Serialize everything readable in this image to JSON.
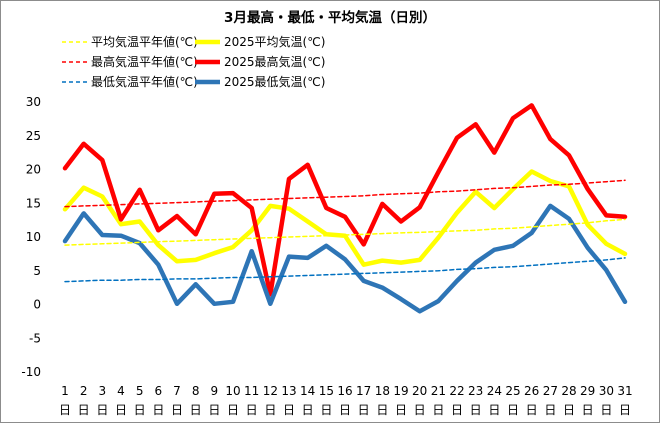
{
  "chart_data": {
    "type": "line",
    "title": "3月最高・最低・平均気温（日別）",
    "legend_placement": "top-left",
    "grid": false,
    "ylim": [
      -10,
      30
    ],
    "yticks": [
      30,
      25,
      20,
      15,
      10,
      5,
      0,
      -5,
      -10
    ],
    "x": [
      "1",
      "2",
      "3",
      "4",
      "5",
      "6",
      "7",
      "8",
      "9",
      "10",
      "11",
      "12",
      "13",
      "14",
      "15",
      "16",
      "17",
      "18",
      "19",
      "20",
      "21",
      "22",
      "23",
      "24",
      "25",
      "26",
      "27",
      "28",
      "29",
      "30",
      "31"
    ],
    "x_unit": "日",
    "series": [
      {
        "name": "平均気温平年値(℃)",
        "style": "dashed",
        "color": "#ffff00",
        "values": [
          8.8,
          8.9,
          9.0,
          9.1,
          9.2,
          9.3,
          9.4,
          9.5,
          9.6,
          9.7,
          9.8,
          9.9,
          10.0,
          10.1,
          10.2,
          10.3,
          10.4,
          10.5,
          10.6,
          10.7,
          10.8,
          10.9,
          11.0,
          11.2,
          11.3,
          11.5,
          11.7,
          11.9,
          12.1,
          12.4,
          12.6
        ]
      },
      {
        "name": "2025平均気温(℃)",
        "style": "solid",
        "color": "#ffff00",
        "values": [
          14.1,
          17.3,
          16.0,
          11.9,
          12.3,
          8.8,
          6.4,
          6.6,
          7.6,
          8.5,
          11.0,
          14.6,
          14.2,
          12.3,
          10.4,
          10.2,
          5.9,
          6.5,
          6.2,
          6.6,
          9.9,
          13.6,
          16.7,
          14.3,
          17.1,
          19.7,
          18.3,
          17.5,
          11.8,
          9.0,
          7.5
        ]
      },
      {
        "name": "最高気温平年値(℃)",
        "style": "dashed",
        "color": "#ff0000",
        "values": [
          14.5,
          14.6,
          14.7,
          14.8,
          14.9,
          15.0,
          15.1,
          15.2,
          15.3,
          15.4,
          15.5,
          15.6,
          15.7,
          15.8,
          15.9,
          16.0,
          16.1,
          16.3,
          16.4,
          16.5,
          16.7,
          16.8,
          17.0,
          17.2,
          17.3,
          17.5,
          17.7,
          17.8,
          18.0,
          18.2,
          18.4
        ]
      },
      {
        "name": "2025最高気温(℃)",
        "style": "solid",
        "color": "#ff0000",
        "values": [
          20.2,
          23.8,
          21.4,
          12.6,
          17.0,
          11.0,
          13.1,
          10.4,
          16.4,
          16.5,
          14.3,
          1.5,
          18.6,
          20.7,
          14.3,
          13.0,
          8.9,
          14.9,
          12.3,
          14.4,
          19.6,
          24.7,
          26.7,
          22.5,
          27.6,
          29.5,
          24.5,
          22.1,
          17.1,
          13.2,
          13.0
        ]
      },
      {
        "name": "最低気温平年値(℃)",
        "style": "dashed",
        "color": "#0070c0",
        "values": [
          3.4,
          3.5,
          3.6,
          3.6,
          3.7,
          3.7,
          3.8,
          3.8,
          3.9,
          4.0,
          4.0,
          4.1,
          4.2,
          4.3,
          4.4,
          4.5,
          4.6,
          4.7,
          4.8,
          4.9,
          5.0,
          5.2,
          5.3,
          5.5,
          5.6,
          5.8,
          6.0,
          6.2,
          6.4,
          6.6,
          6.9
        ]
      },
      {
        "name": "2025最低気温(℃)",
        "style": "solid",
        "color": "#2e75b6",
        "values": [
          9.4,
          13.5,
          10.3,
          10.2,
          9.1,
          5.9,
          0.1,
          3.0,
          0.1,
          0.4,
          7.9,
          0.1,
          7.1,
          6.9,
          8.7,
          6.7,
          3.5,
          2.5,
          0.8,
          -1.0,
          0.5,
          3.5,
          6.2,
          8.1,
          8.7,
          10.6,
          14.6,
          12.7,
          8.4,
          5.1,
          0.4
        ]
      }
    ]
  }
}
